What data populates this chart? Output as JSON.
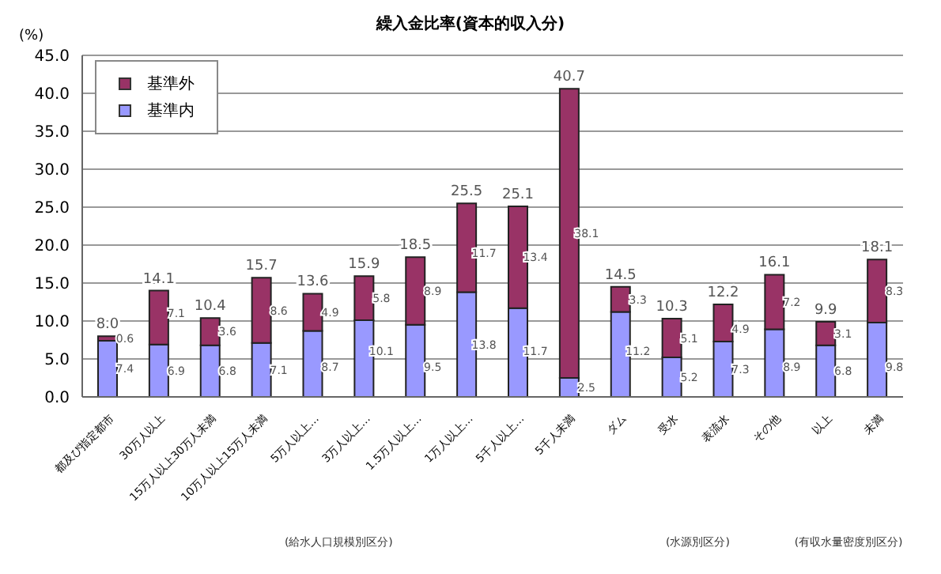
{
  "chart_data": {
    "type": "bar",
    "title": "繰入金比率(資本的収入分)",
    "ylabel": "(%)",
    "stacked": true,
    "data_labels": true,
    "legend": "top left",
    "grid": "y",
    "categories": [
      "都及び指定都市",
      "30万人以上",
      "15万人以上30万人未満",
      "10万人以上15万人未満",
      "5万人以上…",
      "3万人以上…",
      "1.5万人以上…",
      "1万人以上…",
      "5千人以上…",
      "5千人未満",
      "ダム",
      "受水",
      "表流水",
      "その他",
      "以上",
      "未満"
    ],
    "series": [
      {
        "name": "基準内",
        "color": "#9999ff",
        "values": [
          7.4,
          6.9,
          6.8,
          7.1,
          8.7,
          10.1,
          9.5,
          13.8,
          11.7,
          2.5,
          11.2,
          5.2,
          7.3,
          8.9,
          6.8,
          9.8
        ]
      },
      {
        "name": "基準外",
        "color": "#993366",
        "values": [
          0.6,
          7.1,
          3.6,
          8.6,
          4.9,
          5.8,
          8.9,
          11.7,
          13.4,
          38.1,
          3.3,
          5.1,
          4.9,
          7.2,
          3.1,
          8.3
        ]
      }
    ],
    "totals": [
      "8.0",
      "14.1",
      "10.4",
      "15.7",
      "13.6",
      "15.9",
      "18.5",
      "25.5",
      "25.1",
      "40.7",
      "14.5",
      "10.3",
      "12.2",
      "16.1",
      "9.9",
      "18.1"
    ],
    "ylim": [
      0,
      45
    ],
    "yticks": [
      {
        "value": 0,
        "label": "0.0"
      },
      {
        "value": 5,
        "label": "5.0"
      },
      {
        "value": 10,
        "label": "10.0"
      },
      {
        "value": 15,
        "label": "15.0"
      },
      {
        "value": 20,
        "label": "20.0"
      },
      {
        "value": 25,
        "label": "25.0"
      },
      {
        "value": 30,
        "label": "30.0"
      },
      {
        "value": 35,
        "label": "35.0"
      },
      {
        "value": 40,
        "label": "40.0"
      },
      {
        "value": 45,
        "label": "45.0"
      }
    ],
    "annotations": [
      "(給水人口規模別区分)",
      "(水源別区分)",
      "(有収水量密度別区分)"
    ]
  }
}
